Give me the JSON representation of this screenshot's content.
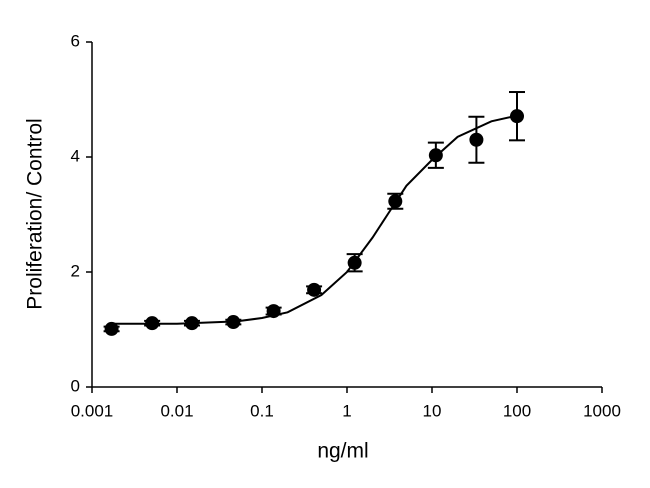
{
  "chart_data": {
    "type": "scatter",
    "x_label": "ng/ml",
    "y_label": "Proliferation/ Control",
    "x_log": true,
    "xlim": [
      0.001,
      1000
    ],
    "xticks": [
      0.001,
      0.01,
      0.1,
      1,
      10,
      100,
      1000
    ],
    "ylim": [
      0,
      6
    ],
    "yticks": [
      0,
      2,
      4,
      6
    ],
    "color": "#000000",
    "x": [
      0.0017,
      0.0051,
      0.015,
      0.046,
      0.137,
      0.41,
      1.23,
      3.7,
      11.1,
      33.3,
      100
    ],
    "values": [
      1.01,
      1.11,
      1.11,
      1.13,
      1.32,
      1.69,
      2.16,
      3.23,
      4.03,
      4.3,
      4.71
    ],
    "errors": [
      0.04,
      0.04,
      0.04,
      0.04,
      0.06,
      0.06,
      0.15,
      0.13,
      0.22,
      0.4,
      0.42
    ],
    "curve": {
      "x": [
        0.0017,
        0.01,
        0.05,
        0.1,
        0.2,
        0.5,
        1,
        2,
        3,
        5,
        10,
        20,
        50,
        100
      ],
      "values": [
        1.1,
        1.1,
        1.14,
        1.2,
        1.3,
        1.6,
        2.0,
        2.6,
        3.0,
        3.5,
        3.95,
        4.35,
        4.62,
        4.72
      ]
    }
  }
}
